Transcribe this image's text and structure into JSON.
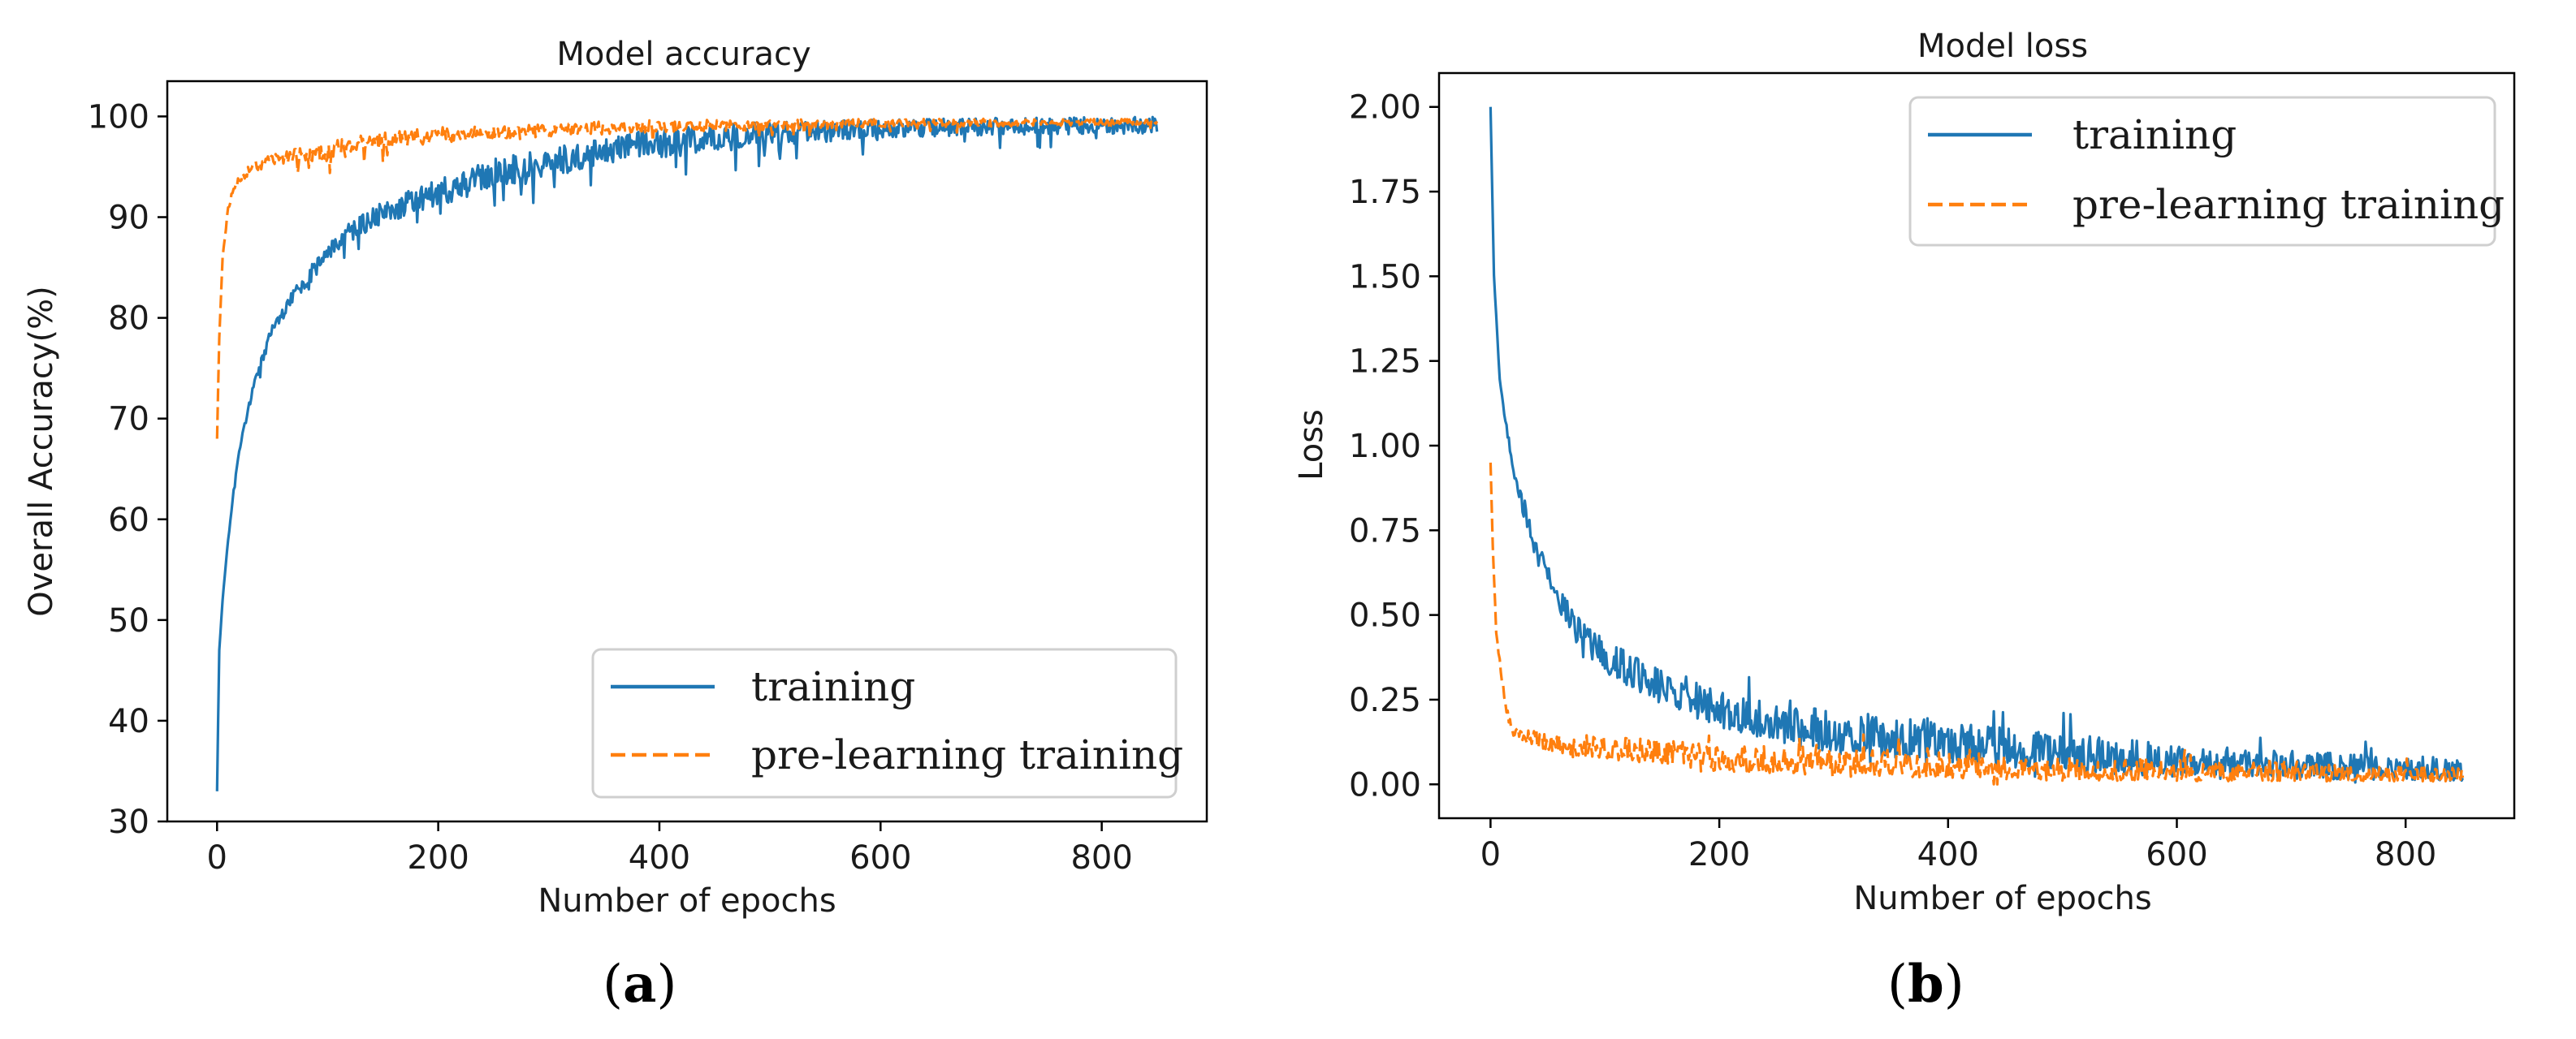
{
  "chart_data": [
    {
      "id": "a",
      "type": "line",
      "title": "Model accuracy",
      "xlabel": "Number of epochs",
      "ylabel": "Overall Accuracy(%)",
      "xlim": [
        -45,
        895
      ],
      "ylim": [
        30,
        103.5
      ],
      "xticks": [
        0,
        200,
        400,
        600,
        800
      ],
      "yticks": [
        30,
        40,
        50,
        60,
        70,
        80,
        90,
        100
      ],
      "legend_position": "lower-right",
      "panel_label": "a",
      "series": [
        {
          "name": "training",
          "color": "#1f77b4",
          "style": "solid",
          "points": [
            [
              0,
              33
            ],
            [
              2,
              47
            ],
            [
              5,
              52
            ],
            [
              10,
              58
            ],
            [
              15,
              63
            ],
            [
              20,
              67
            ],
            [
              30,
              72
            ],
            [
              40,
              76
            ],
            [
              50,
              79
            ],
            [
              60,
              81
            ],
            [
              80,
              84
            ],
            [
              100,
              87
            ],
            [
              120,
              89
            ],
            [
              150,
              91
            ],
            [
              200,
              93
            ],
            [
              250,
              95
            ],
            [
              300,
              96
            ],
            [
              350,
              97
            ],
            [
              400,
              98
            ],
            [
              450,
              98.5
            ],
            [
              500,
              98.8
            ],
            [
              600,
              99.2
            ],
            [
              700,
              99.4
            ],
            [
              850,
              99.5
            ]
          ],
          "noise": [
            [
              0,
              0
            ],
            [
              50,
              1.5
            ],
            [
              200,
              3
            ],
            [
              400,
              3.5
            ],
            [
              600,
              2
            ],
            [
              850,
              1.8
            ]
          ]
        },
        {
          "name": "pre-learning training",
          "color": "#ff7f0e",
          "style": "dashed",
          "points": [
            [
              0,
              68
            ],
            [
              2,
              78
            ],
            [
              5,
              86
            ],
            [
              10,
              91
            ],
            [
              15,
              93
            ],
            [
              20,
              94
            ],
            [
              30,
              95
            ],
            [
              50,
              96
            ],
            [
              100,
              97
            ],
            [
              150,
              98
            ],
            [
              200,
              98.5
            ],
            [
              300,
              99
            ],
            [
              400,
              99.3
            ],
            [
              600,
              99.5
            ],
            [
              850,
              99.6
            ]
          ],
          "noise": [
            [
              0,
              0
            ],
            [
              20,
              1
            ],
            [
              100,
              2
            ],
            [
              300,
              1.5
            ],
            [
              600,
              1
            ],
            [
              850,
              0.6
            ]
          ]
        }
      ]
    },
    {
      "id": "b",
      "type": "line",
      "title": "Model loss",
      "xlabel": "Number of epochs",
      "ylabel": "Loss",
      "xlim": [
        -45,
        895
      ],
      "ylim": [
        -0.1,
        2.1
      ],
      "xticks": [
        0,
        200,
        400,
        600,
        800
      ],
      "yticks": [
        0.0,
        0.25,
        0.5,
        0.75,
        1.0,
        1.25,
        1.5,
        1.75,
        2.0
      ],
      "legend_position": "top-right",
      "panel_label": "b",
      "series": [
        {
          "name": "training",
          "color": "#1f77b4",
          "style": "solid",
          "points": [
            [
              0,
              2.0
            ],
            [
              3,
              1.5
            ],
            [
              8,
              1.2
            ],
            [
              15,
              1.02
            ],
            [
              25,
              0.85
            ],
            [
              40,
              0.68
            ],
            [
              60,
              0.52
            ],
            [
              80,
              0.42
            ],
            [
              100,
              0.36
            ],
            [
              130,
              0.3
            ],
            [
              160,
              0.25
            ],
            [
              200,
              0.2
            ],
            [
              250,
              0.16
            ],
            [
              300,
              0.13
            ],
            [
              400,
              0.1
            ],
            [
              500,
              0.07
            ],
            [
              600,
              0.05
            ],
            [
              700,
              0.04
            ],
            [
              850,
              0.03
            ]
          ],
          "noise": [
            [
              0,
              0
            ],
            [
              40,
              0.05
            ],
            [
              100,
              0.07
            ],
            [
              300,
              0.09
            ],
            [
              500,
              0.08
            ],
            [
              700,
              0.06
            ],
            [
              850,
              0.05
            ]
          ]
        },
        {
          "name": "pre-learning training",
          "color": "#ff7f0e",
          "style": "dashed",
          "points": [
            [
              0,
              0.95
            ],
            [
              2,
              0.7
            ],
            [
              5,
              0.45
            ],
            [
              10,
              0.3
            ],
            [
              15,
              0.2
            ],
            [
              20,
              0.15
            ],
            [
              40,
              0.12
            ],
            [
              80,
              0.1
            ],
            [
              150,
              0.08
            ],
            [
              200,
              0.06
            ],
            [
              300,
              0.05
            ],
            [
              500,
              0.03
            ],
            [
              850,
              0.02
            ]
          ],
          "noise": [
            [
              0,
              0
            ],
            [
              20,
              0.03
            ],
            [
              100,
              0.05
            ],
            [
              300,
              0.06
            ],
            [
              500,
              0.05
            ],
            [
              850,
              0.03
            ]
          ]
        }
      ]
    }
  ]
}
